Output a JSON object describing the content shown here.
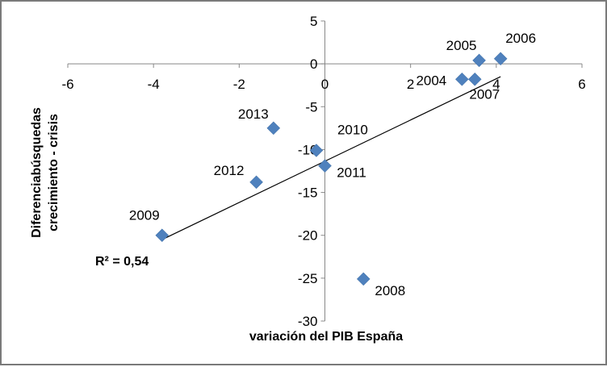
{
  "chart_data": {
    "type": "scatter",
    "title": "",
    "xlabel": "variación del PIB España",
    "ylabel_lines": [
      "Diferenciabúsquedas",
      "crecimiento - crisis"
    ],
    "xlim": [
      -6,
      6
    ],
    "ylim": [
      -30,
      5
    ],
    "x_ticks": [
      -6,
      -4,
      -2,
      0,
      2,
      4,
      6
    ],
    "y_ticks": [
      5,
      0,
      -5,
      -10,
      -15,
      -20,
      -25,
      -30
    ],
    "grid": false,
    "legend": "none",
    "marker": "diamond",
    "marker_color": "#4f81bd",
    "trendline_color": "#000000",
    "points": [
      {
        "label": "2004",
        "x": 3.2,
        "y": -1.8
      },
      {
        "label": "2005",
        "x": 3.6,
        "y": 0.4
      },
      {
        "label": "2006",
        "x": 4.1,
        "y": 0.6
      },
      {
        "label": "2007",
        "x": 3.5,
        "y": -1.8
      },
      {
        "label": "2008",
        "x": 0.9,
        "y": -25.1
      },
      {
        "label": "2009",
        "x": -3.8,
        "y": -20.0
      },
      {
        "label": "2010",
        "x": -0.2,
        "y": -10.1
      },
      {
        "label": "2011",
        "x": 0.0,
        "y": -11.9
      },
      {
        "label": "2012",
        "x": -1.6,
        "y": -13.8
      },
      {
        "label": "2013",
        "x": -1.2,
        "y": -7.5
      }
    ],
    "trendline": {
      "x0": -3.8,
      "y0": -20.5,
      "x1": 4.1,
      "y1": -1.5
    },
    "annotation": "R² = 0,54"
  }
}
